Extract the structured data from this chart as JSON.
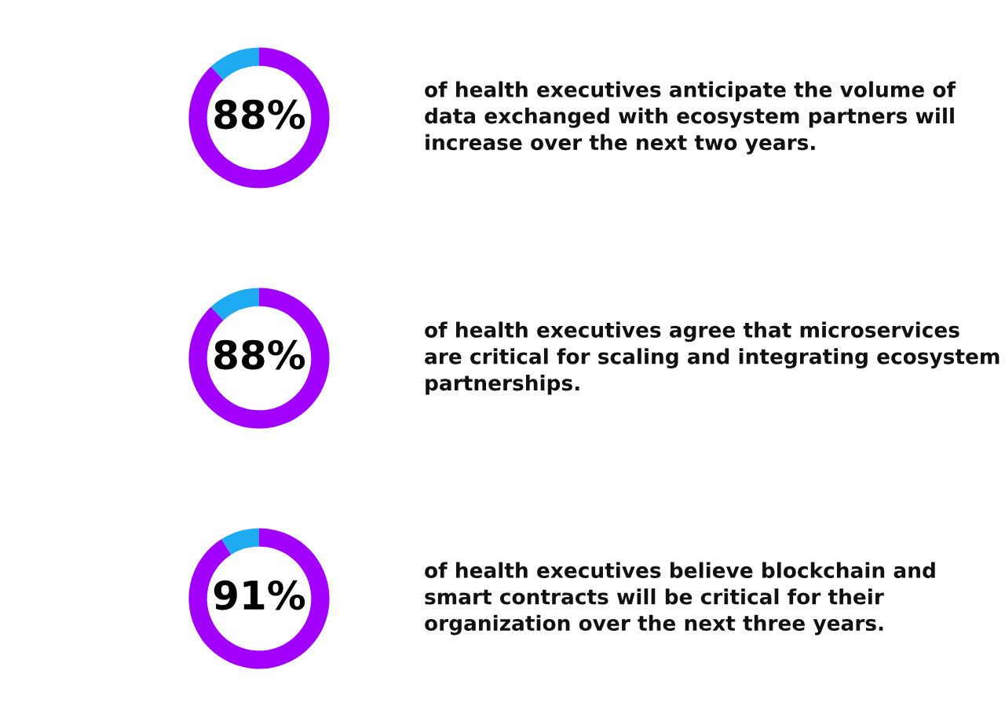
{
  "chart_data": [
    {
      "type": "donut",
      "categories": [
        null,
        null
      ],
      "values": [
        88,
        12
      ],
      "colors": [
        "#a100ff",
        "#1eaaf1"
      ],
      "value_labels": [
        "88%",
        null
      ],
      "annotations": [
        "of health executives anticipate the volume of data exchanged with ecosystem partners will increase over the next two years."
      ]
    },
    {
      "type": "donut",
      "categories": [
        null,
        null
      ],
      "values": [
        88,
        12
      ],
      "colors": [
        "#a100ff",
        "#1eaaf1"
      ],
      "value_labels": [
        "88%",
        null
      ],
      "annotations": [
        "of health executives agree that microservices are critical for scaling and integrating ecosystem partnerships."
      ]
    },
    {
      "type": "donut",
      "categories": [
        null,
        null
      ],
      "values": [
        91,
        9
      ],
      "colors": [
        "#a100ff",
        "#1eaaf1"
      ],
      "value_labels": [
        "91%",
        null
      ],
      "annotations": [
        "of health executives believe blockchain and smart contracts will be critical for their organization over the next three years."
      ]
    }
  ]
}
